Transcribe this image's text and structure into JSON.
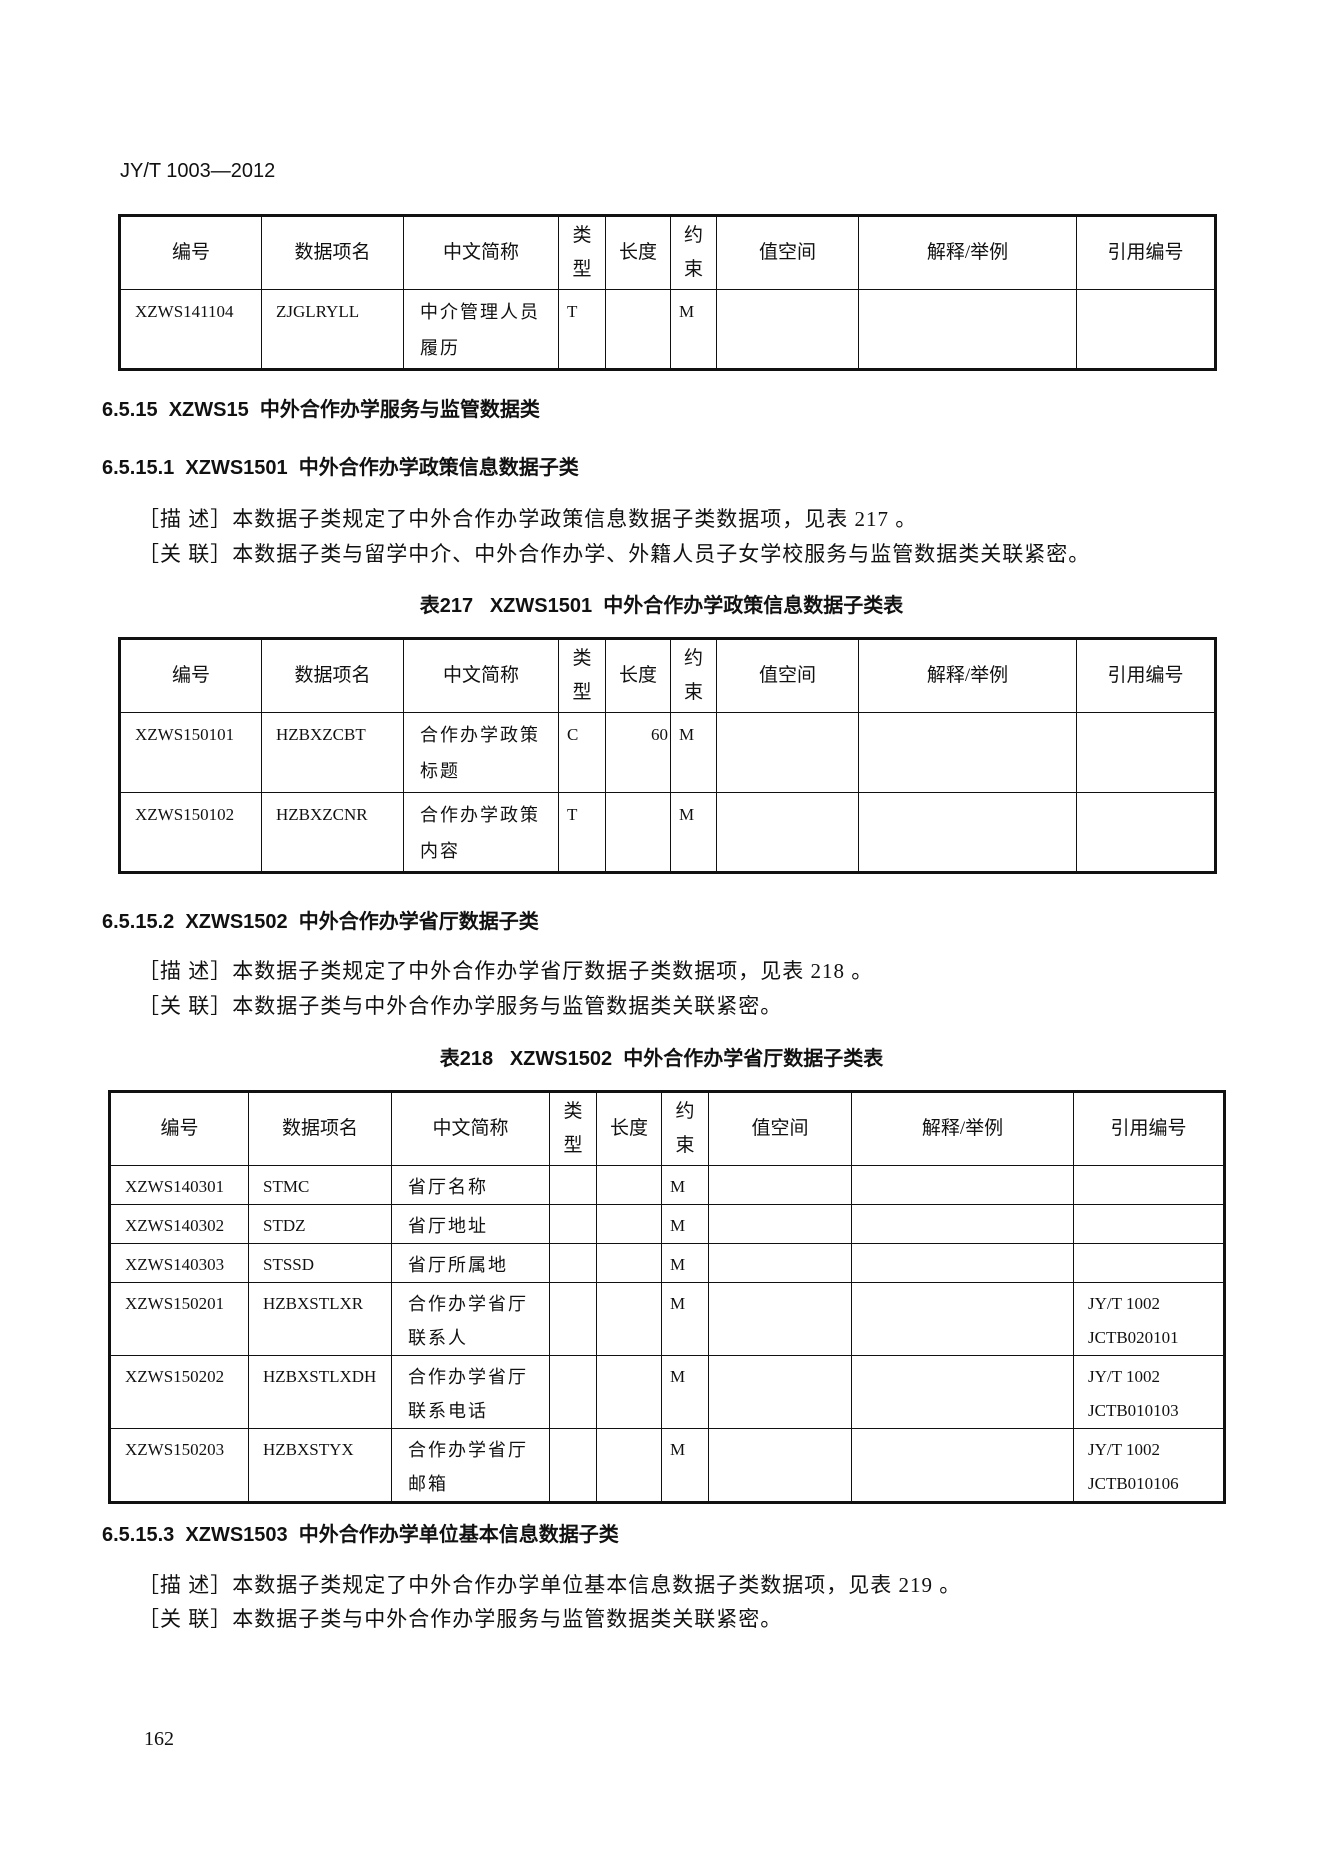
{
  "header": {
    "code": "JY/T 1003—2012"
  },
  "continued_table": {
    "columns": [
      "编号",
      "数据项名",
      "中文简称",
      "类型",
      "长度",
      "约束",
      "值空间",
      "解释/举例",
      "引用编号"
    ],
    "rows": [
      [
        "XZWS141104",
        "ZJGLRYLL",
        "中介管理人员履历",
        "T",
        null,
        "M",
        null,
        null,
        null
      ]
    ]
  },
  "section": {
    "heading": "6.5.15  XZWS15  中外合作办学服务与监管数据类",
    "subsections": [
      {
        "heading": "6.5.15.1  XZWS1501  中外合作办学政策信息数据子类",
        "description": "［描 述］本数据子类规定了中外合作办学政策信息数据子类数据项，见表 217 。",
        "relation": "［关 联］本数据子类与留学中介、中外合作办学、外籍人员子女学校服务与监管数据类关联紧密。",
        "table": {
          "title": "表217   XZWS1501  中外合作办学政策信息数据子类表",
          "columns": [
            "编号",
            "数据项名",
            "中文简称",
            "类型",
            "长度",
            "约束",
            "值空间",
            "解释/举例",
            "引用编号"
          ],
          "rows": [
            [
              "XZWS150101",
              "HZBXZCBT",
              "合作办学政策标题",
              "C",
              60,
              "M",
              null,
              null,
              null
            ],
            [
              "XZWS150102",
              "HZBXZCNR",
              "合作办学政策内容",
              "T",
              null,
              "M",
              null,
              null,
              null
            ]
          ]
        }
      },
      {
        "heading": "6.5.15.2  XZWS1502  中外合作办学省厅数据子类",
        "description": "［描 述］本数据子类规定了中外合作办学省厅数据子类数据项，见表 218 。",
        "relation": "［关 联］本数据子类与中外合作办学服务与监管数据类关联紧密。",
        "table": {
          "title": "表218   XZWS1502  中外合作办学省厅数据子类表",
          "columns": [
            "编号",
            "数据项名",
            "中文简称",
            "类型",
            "长度",
            "约束",
            "值空间",
            "解释/举例",
            "引用编号"
          ],
          "rows": [
            [
              "XZWS140301",
              "STMC",
              "省厅名称",
              null,
              null,
              "M",
              null,
              null,
              null
            ],
            [
              "XZWS140302",
              "STDZ",
              "省厅地址",
              null,
              null,
              "M",
              null,
              null,
              null
            ],
            [
              "XZWS140303",
              "STSSD",
              "省厅所属地",
              null,
              null,
              "M",
              null,
              null,
              null
            ],
            [
              "XZWS150201",
              "HZBXSTLXR",
              "合作办学省厅联系人",
              null,
              null,
              "M",
              null,
              null,
              "JY/T 1002 JCTB020101"
            ],
            [
              "XZWS150202",
              "HZBXSTLXDH",
              "合作办学省厅联系电话",
              null,
              null,
              "M",
              null,
              null,
              "JY/T 1002 JCTB010103"
            ],
            [
              "XZWS150203",
              "HZBXSTYX",
              "合作办学省厅邮箱",
              null,
              null,
              "M",
              null,
              null,
              "JY/T 1002 JCTB010106"
            ]
          ]
        }
      },
      {
        "heading": "6.5.15.3  XZWS1503  中外合作办学单位基本信息数据子类",
        "description": "［描 述］本数据子类规定了中外合作办学单位基本信息数据子类数据项，见表 219 。",
        "relation": "［关 联］本数据子类与中外合作办学服务与监管数据类关联紧密。"
      }
    ]
  },
  "footer": {
    "page_number": "162"
  }
}
